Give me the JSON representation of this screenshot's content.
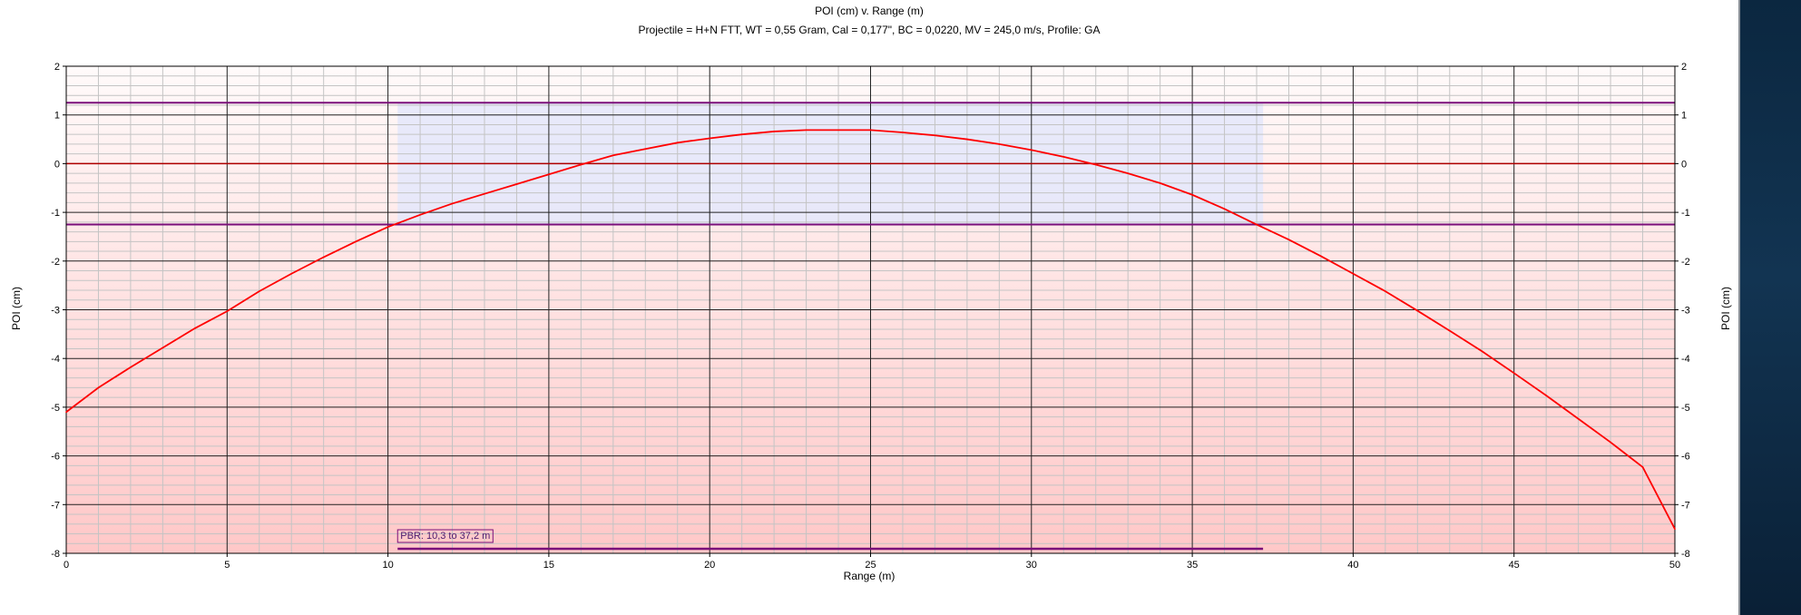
{
  "chart_data": {
    "type": "line",
    "title": "POI (cm) v. Range (m)",
    "subtitle": "Projectile = H+N FTT, WT = 0,55 Gram, Cal = 0,177\", BC = 0,0220, MV = 245,0 m/s, Profile: GA",
    "xlabel": "Range (m)",
    "ylabel": "POI (cm)",
    "xlim": [
      0,
      50
    ],
    "ylim": [
      -8,
      2
    ],
    "x_ticks": [
      0,
      5,
      10,
      15,
      20,
      25,
      30,
      35,
      40,
      45,
      50
    ],
    "y_ticks": [
      2,
      1,
      0,
      -1,
      -2,
      -3,
      -4,
      -5,
      -6,
      -7,
      -8
    ],
    "grid": true,
    "series": [
      {
        "color": "#ff0000",
        "x": [
          0,
          1,
          2,
          3,
          4,
          5,
          6,
          7,
          8,
          9,
          10,
          11,
          12,
          13,
          14,
          15,
          16,
          17,
          18,
          19,
          20,
          21,
          22,
          23,
          24,
          25,
          26,
          27,
          28,
          29,
          30,
          31,
          32,
          33,
          34,
          35,
          36,
          37,
          38,
          39,
          40,
          41,
          42,
          43,
          44,
          45,
          46,
          47,
          48,
          49,
          50
        ],
        "y": [
          -5.1,
          -4.6,
          -4.18,
          -3.78,
          -3.38,
          -3.03,
          -2.62,
          -2.26,
          -1.92,
          -1.6,
          -1.3,
          -1.05,
          -0.82,
          -0.62,
          -0.42,
          -0.22,
          -0.02,
          0.17,
          0.3,
          0.43,
          0.52,
          0.6,
          0.66,
          0.69,
          0.69,
          0.69,
          0.64,
          0.58,
          0.5,
          0.4,
          0.28,
          0.14,
          -0.02,
          -0.2,
          -0.4,
          -0.64,
          -0.93,
          -1.25,
          -1.56,
          -1.9,
          -2.26,
          -2.62,
          -3.02,
          -3.43,
          -3.85,
          -4.3,
          -4.76,
          -5.24,
          -5.72,
          -6.23,
          -7.5
        ]
      }
    ],
    "reference_lines": {
      "zero": 0,
      "upper_limit": 1.25,
      "lower_limit": -1.25
    },
    "pbr": {
      "start": 10.3,
      "end": 37.2,
      "label": "PBR: 10,3 to 37,2 m"
    },
    "colors": {
      "line": "#ff0000",
      "limit": "#7a0f7a",
      "pbr_fill": "#e6e8fb",
      "gradient_top": "#fffafa",
      "gradient_bottom": "#ffc8c8"
    }
  }
}
